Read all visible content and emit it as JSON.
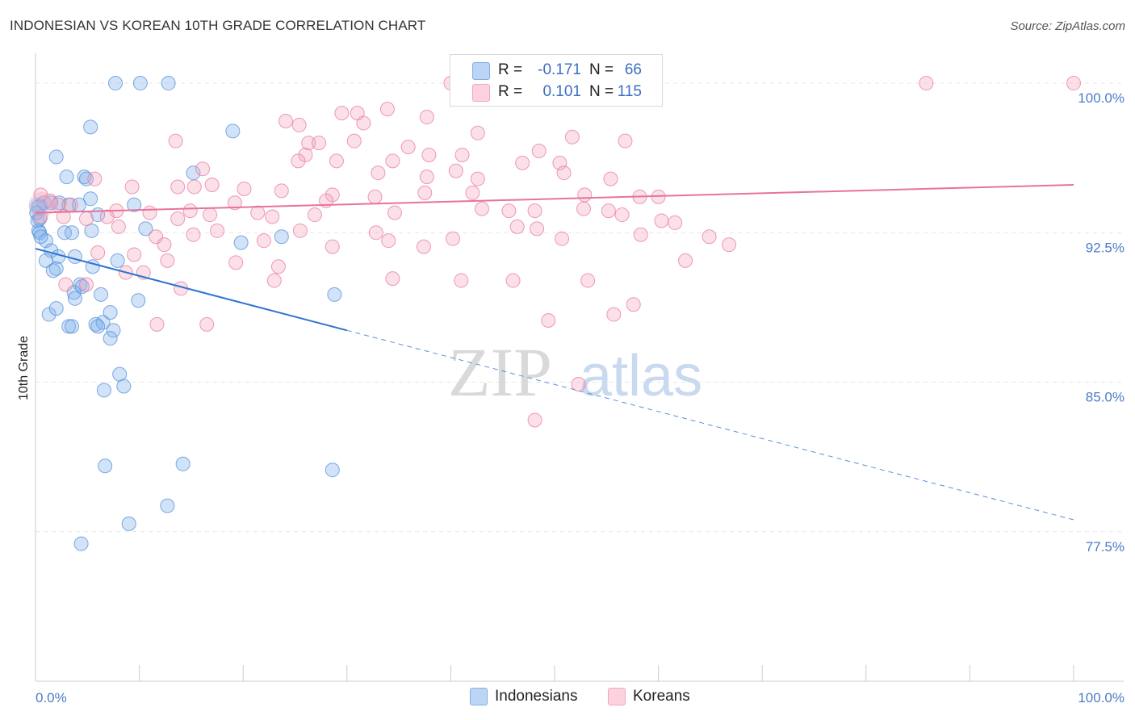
{
  "title": "INDONESIAN VS KOREAN 10TH GRADE CORRELATION CHART",
  "source": "Source: ZipAtlas.com",
  "watermark": {
    "zip": "ZIP",
    "atlas": "atlas"
  },
  "legend": {
    "rows": [
      {
        "r_label": "R =",
        "r_value": "-0.171",
        "n_label": "N =",
        "n_value": "66",
        "color": "#7fb0ea"
      },
      {
        "r_label": "R =",
        "r_value": "0.101",
        "n_label": "N =",
        "n_value": "115",
        "color": "#f4a6be"
      }
    ]
  },
  "bottom_legend": {
    "series1": "Indonesians",
    "series2": "Koreans"
  },
  "chart_data": {
    "type": "scatter",
    "ylabel": "10th Grade",
    "xlabel": "",
    "x_tick_labels": [
      "0.0%",
      "100.0%"
    ],
    "y_tick_labels": [
      "100.0%",
      "92.5%",
      "85.0%",
      "77.5%"
    ],
    "y_ticks": [
      100.0,
      92.5,
      85.0,
      77.5
    ],
    "xlim": [
      0,
      100
    ],
    "ylim": [
      70.0,
      101.5
    ],
    "grid": true,
    "series": [
      {
        "name": "Indonesians",
        "color": "#4f8fdb",
        "fill": "rgba(127,176,234,0.35)",
        "trend": {
          "x0": 0.0,
          "y0": 91.7,
          "x1": 30.0,
          "y1": 87.6,
          "dash_to_x": 100.0,
          "dash_to_y": 78.1
        },
        "points": [
          [
            7.7,
            100
          ],
          [
            10.1,
            100
          ],
          [
            12.8,
            100
          ],
          [
            5.3,
            97.8
          ],
          [
            2.0,
            96.3
          ],
          [
            9.5,
            93.9
          ],
          [
            15.2,
            95.5
          ],
          [
            19.0,
            97.6
          ],
          [
            3.0,
            95.3
          ],
          [
            4.7,
            95.3
          ],
          [
            4.9,
            95.2
          ],
          [
            0.8,
            94.0
          ],
          [
            1.5,
            94.0
          ],
          [
            2.3,
            94.0
          ],
          [
            3.2,
            93.9
          ],
          [
            5.3,
            94.2
          ],
          [
            0.3,
            93.8
          ],
          [
            0.4,
            93.2
          ],
          [
            0.3,
            92.6
          ],
          [
            0.4,
            92.5
          ],
          [
            1.0,
            92.1
          ],
          [
            2.8,
            92.5
          ],
          [
            3.5,
            92.5
          ],
          [
            5.4,
            92.6
          ],
          [
            6.0,
            93.4
          ],
          [
            10.6,
            92.7
          ],
          [
            1.5,
            91.6
          ],
          [
            2.2,
            91.3
          ],
          [
            3.8,
            91.3
          ],
          [
            1.0,
            91.1
          ],
          [
            2.0,
            90.7
          ],
          [
            1.7,
            90.6
          ],
          [
            5.5,
            90.8
          ],
          [
            7.9,
            91.1
          ],
          [
            4.3,
            89.9
          ],
          [
            4.5,
            89.8
          ],
          [
            3.7,
            89.5
          ],
          [
            3.8,
            89.2
          ],
          [
            6.3,
            89.4
          ],
          [
            9.9,
            89.1
          ],
          [
            1.3,
            88.4
          ],
          [
            2.0,
            88.7
          ],
          [
            3.2,
            87.8
          ],
          [
            3.5,
            87.8
          ],
          [
            5.8,
            87.9
          ],
          [
            6.5,
            88.0
          ],
          [
            6.0,
            87.8
          ],
          [
            7.2,
            88.5
          ],
          [
            7.5,
            87.6
          ],
          [
            7.2,
            87.2
          ],
          [
            8.1,
            85.4
          ],
          [
            8.5,
            84.8
          ],
          [
            6.6,
            84.6
          ],
          [
            19.8,
            92.0
          ],
          [
            23.7,
            92.3
          ],
          [
            28.8,
            89.4
          ],
          [
            6.7,
            80.8
          ],
          [
            14.2,
            80.9
          ],
          [
            28.6,
            80.6
          ],
          [
            12.7,
            78.8
          ],
          [
            9.0,
            77.9
          ],
          [
            4.4,
            76.9
          ],
          [
            0.1,
            93.5
          ],
          [
            0.2,
            93.1
          ],
          [
            0.5,
            92.3
          ],
          [
            4.2,
            93.9
          ]
        ]
      },
      {
        "name": "Koreans",
        "color": "#e87a9f",
        "fill": "rgba(244,166,190,0.35)",
        "trend": {
          "x0": 0.0,
          "y0": 93.5,
          "x1": 100.0,
          "y1": 94.9
        },
        "points": [
          [
            40.0,
            100
          ],
          [
            57.0,
            99.9
          ],
          [
            85.8,
            100
          ],
          [
            100,
            100
          ],
          [
            31.6,
            98.0
          ],
          [
            29.5,
            98.5
          ],
          [
            31.0,
            98.5
          ],
          [
            33.9,
            98.7
          ],
          [
            37.7,
            98.3
          ],
          [
            24.1,
            98.1
          ],
          [
            25.4,
            97.9
          ],
          [
            42.6,
            97.5
          ],
          [
            51.7,
            97.3
          ],
          [
            56.8,
            97.1
          ],
          [
            13.5,
            97.1
          ],
          [
            26.3,
            97.0
          ],
          [
            27.3,
            97.0
          ],
          [
            30.7,
            97.1
          ],
          [
            35.9,
            96.8
          ],
          [
            48.5,
            96.6
          ],
          [
            26.0,
            96.4
          ],
          [
            29.0,
            96.1
          ],
          [
            37.9,
            96.4
          ],
          [
            41.1,
            96.4
          ],
          [
            25.3,
            96.1
          ],
          [
            34.4,
            96.1
          ],
          [
            46.9,
            96.0
          ],
          [
            50.5,
            96.0
          ],
          [
            16.1,
            95.7
          ],
          [
            40.5,
            95.6
          ],
          [
            33.0,
            95.5
          ],
          [
            37.7,
            95.3
          ],
          [
            42.6,
            95.2
          ],
          [
            50.9,
            95.5
          ],
          [
            55.4,
            95.2
          ],
          [
            5.7,
            95.2
          ],
          [
            17.0,
            94.9
          ],
          [
            15.3,
            94.8
          ],
          [
            13.7,
            94.8
          ],
          [
            9.3,
            94.8
          ],
          [
            20.1,
            94.7
          ],
          [
            23.7,
            94.6
          ],
          [
            28.6,
            94.4
          ],
          [
            32.7,
            94.3
          ],
          [
            37.5,
            94.5
          ],
          [
            42.1,
            94.5
          ],
          [
            52.9,
            94.4
          ],
          [
            58.2,
            94.3
          ],
          [
            60.0,
            94.3
          ],
          [
            0.5,
            94.4
          ],
          [
            1.4,
            94.1
          ],
          [
            2.2,
            93.9
          ],
          [
            3.4,
            93.9
          ],
          [
            7.8,
            93.6
          ],
          [
            11.0,
            93.5
          ],
          [
            14.9,
            93.6
          ],
          [
            19.2,
            94.0
          ],
          [
            21.4,
            93.5
          ],
          [
            26.9,
            93.4
          ],
          [
            28.0,
            94.1
          ],
          [
            34.6,
            93.5
          ],
          [
            43.0,
            93.7
          ],
          [
            45.6,
            93.6
          ],
          [
            48.1,
            93.6
          ],
          [
            52.8,
            93.7
          ],
          [
            55.2,
            93.6
          ],
          [
            56.5,
            93.4
          ],
          [
            60.3,
            93.1
          ],
          [
            61.6,
            93.0
          ],
          [
            4.9,
            93.2
          ],
          [
            6.9,
            93.3
          ],
          [
            0.5,
            93.3
          ],
          [
            2.7,
            93.3
          ],
          [
            13.7,
            93.2
          ],
          [
            16.8,
            93.4
          ],
          [
            22.8,
            93.3
          ],
          [
            8.0,
            92.8
          ],
          [
            11.6,
            92.3
          ],
          [
            17.5,
            92.6
          ],
          [
            25.5,
            92.6
          ],
          [
            32.8,
            92.5
          ],
          [
            40.2,
            92.2
          ],
          [
            46.4,
            92.8
          ],
          [
            48.3,
            92.7
          ],
          [
            50.7,
            92.2
          ],
          [
            58.3,
            92.4
          ],
          [
            12.4,
            91.9
          ],
          [
            15.2,
            92.4
          ],
          [
            22.0,
            92.1
          ],
          [
            28.6,
            91.8
          ],
          [
            34.0,
            92.1
          ],
          [
            37.4,
            91.8
          ],
          [
            64.9,
            92.3
          ],
          [
            66.8,
            91.9
          ],
          [
            6.0,
            91.5
          ],
          [
            9.5,
            91.4
          ],
          [
            12.7,
            91.1
          ],
          [
            19.3,
            91.0
          ],
          [
            23.4,
            90.8
          ],
          [
            8.7,
            90.5
          ],
          [
            10.4,
            90.5
          ],
          [
            23.0,
            90.1
          ],
          [
            34.4,
            90.2
          ],
          [
            41.0,
            90.1
          ],
          [
            46.0,
            90.1
          ],
          [
            53.2,
            90.1
          ],
          [
            62.6,
            91.1
          ],
          [
            4.9,
            89.9
          ],
          [
            14.0,
            89.7
          ],
          [
            2.9,
            89.9
          ],
          [
            11.7,
            87.9
          ],
          [
            16.5,
            87.9
          ],
          [
            49.4,
            88.1
          ],
          [
            55.7,
            88.4
          ],
          [
            57.6,
            88.9
          ],
          [
            52.3,
            84.9
          ],
          [
            48.1,
            83.1
          ]
        ]
      }
    ]
  }
}
